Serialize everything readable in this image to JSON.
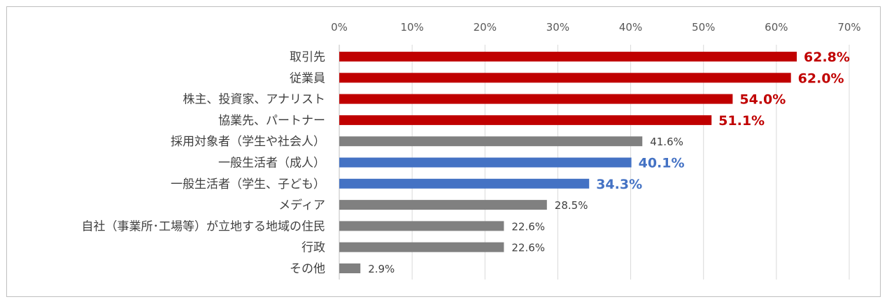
{
  "chart_data": {
    "type": "bar",
    "orientation": "horizontal",
    "categories": [
      "取引先",
      "従業員",
      "株主、投資家、アナリスト",
      "協業先、パートナー",
      "採用対象者（学生や社会人）",
      "一般生活者（成人）",
      "一般生活者（学生、子ども）",
      "メディア",
      "自社（事業所･工場等）が立地する地域の住民",
      "行政",
      "その他"
    ],
    "values": [
      62.8,
      62.0,
      54.0,
      51.1,
      41.6,
      40.1,
      34.3,
      28.5,
      22.6,
      22.6,
      2.9
    ],
    "data_labels": [
      "62.8%",
      "62.0%",
      "54.0%",
      "51.1%",
      "41.6%",
      "40.1%",
      "34.3%",
      "28.5%",
      "22.6%",
      "22.6%",
      "2.9%"
    ],
    "bar_colors": [
      "#c00000",
      "#c00000",
      "#c00000",
      "#c00000",
      "#808080",
      "#4472c4",
      "#4472c4",
      "#808080",
      "#808080",
      "#808080",
      "#808080"
    ],
    "label_emphasis": [
      true,
      true,
      true,
      true,
      false,
      true,
      true,
      false,
      false,
      false,
      false
    ],
    "x_ticks": [
      "0%",
      "10%",
      "20%",
      "30%",
      "40%",
      "50%",
      "60%",
      "70%"
    ],
    "xlim": [
      0,
      70
    ],
    "axis_position": "top",
    "grid": true,
    "title": "",
    "xlabel": "",
    "ylabel": ""
  }
}
